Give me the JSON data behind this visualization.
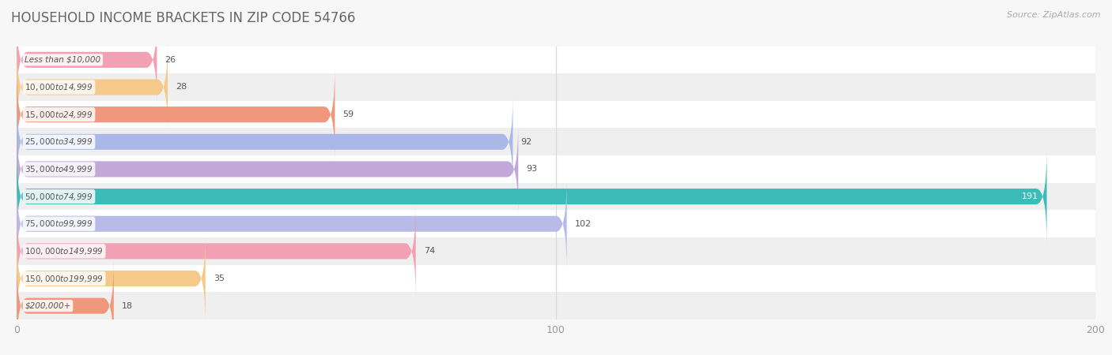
{
  "title": "HOUSEHOLD INCOME BRACKETS IN ZIP CODE 54766",
  "source_text": "Source: ZipAtlas.com",
  "categories": [
    "Less than $10,000",
    "$10,000 to $14,999",
    "$15,000 to $24,999",
    "$25,000 to $34,999",
    "$35,000 to $49,999",
    "$50,000 to $74,999",
    "$75,000 to $99,999",
    "$100,000 to $149,999",
    "$150,000 to $199,999",
    "$200,000+"
  ],
  "values": [
    26,
    28,
    59,
    92,
    93,
    191,
    102,
    74,
    35,
    18
  ],
  "bar_colors": [
    "#f2a0b3",
    "#f5c98a",
    "#f0977c",
    "#aab8e8",
    "#c2a8d8",
    "#3bbcb8",
    "#b8bbe8",
    "#f2a0b3",
    "#f5c98a",
    "#f0977c"
  ],
  "xlim": [
    0,
    200
  ],
  "xticks": [
    0,
    100,
    200
  ],
  "bar_height": 0.58,
  "background_color": "#f7f7f7",
  "row_bg_even": "#ffffff",
  "row_bg_odd": "#efefef",
  "title_fontsize": 12,
  "label_fontsize": 7.5,
  "value_fontsize": 8,
  "source_fontsize": 8,
  "title_color": "#666666",
  "label_color": "#555555",
  "value_color_dark": "#555555",
  "value_color_light": "#ffffff",
  "grid_color": "#d8d8d8",
  "tick_color": "#999999"
}
